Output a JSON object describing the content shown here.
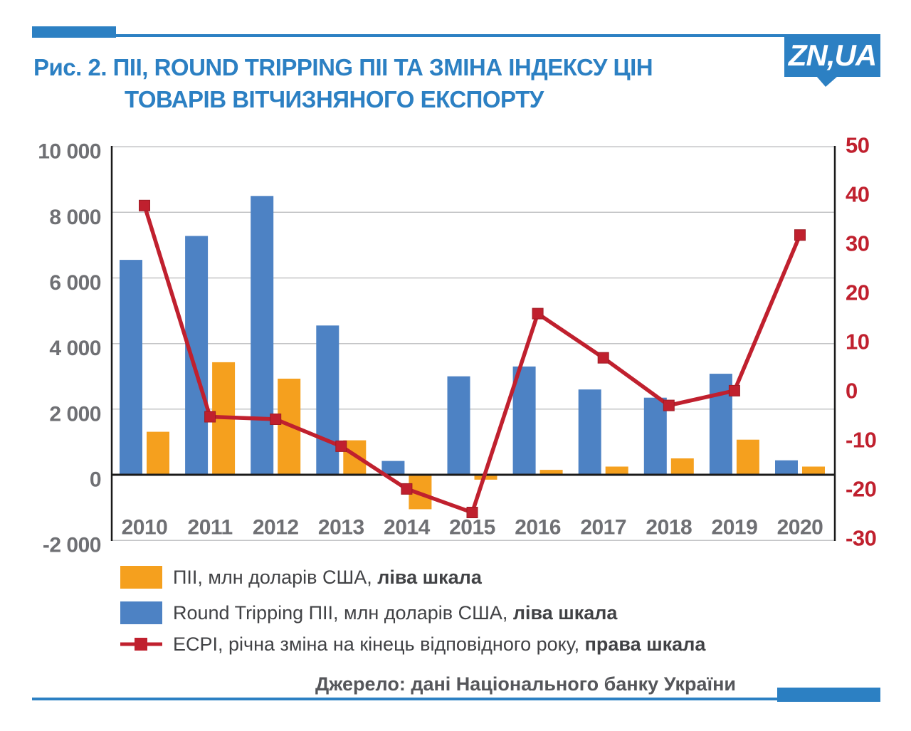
{
  "brand": {
    "logo_text": "ZN,UA"
  },
  "title": {
    "line1": "Рис. 2. ПІІ, ROUND TRIPPING ПІІ ТА ЗМІНА ІНДЕКСУ ЦІН",
    "line2": "ТОВАРІВ ВІТЧИЗНЯНОГО ЕКСПОРТУ"
  },
  "chart_data": {
    "type": "bar+line combo",
    "categories": [
      "2010",
      "2011",
      "2012",
      "2013",
      "2014",
      "2015",
      "2016",
      "2017",
      "2018",
      "2019",
      "2020"
    ],
    "series": [
      {
        "name": "ПІІ, млн доларів США",
        "kind": "bar",
        "axis": "left",
        "color": "#F5A01E",
        "values": [
          1310,
          3430,
          2930,
          1050,
          -1050,
          -150,
          150,
          250,
          500,
          1070,
          250
        ]
      },
      {
        "name": "Round Tripping ПІІ, млн доларів США",
        "kind": "bar",
        "axis": "left",
        "color": "#4D82C4",
        "values": [
          6550,
          7280,
          8500,
          4550,
          420,
          3000,
          3300,
          2600,
          2350,
          3080,
          440
        ]
      },
      {
        "name": "ECPI, річна зміна на кінець відповідного року",
        "kind": "line",
        "axis": "right",
        "color": "#C0202E",
        "values": [
          38,
          -5,
          -5.5,
          -11,
          -19.7,
          -24.5,
          16,
          7,
          -2.7,
          0.3,
          32
        ]
      }
    ],
    "left_axis": {
      "min": -2000,
      "max": 10000,
      "tick_values": [
        10000,
        8000,
        6000,
        4000,
        2000,
        0,
        -2000
      ],
      "tick_labels": [
        "10 000",
        "8 000",
        "6 000",
        "4 000",
        "2 000",
        "0",
        "-2 000"
      ]
    },
    "right_axis": {
      "min": -30,
      "max": 50,
      "tick_values": [
        50,
        40,
        30,
        20,
        10,
        0,
        -10,
        -20,
        -30
      ],
      "tick_labels": [
        "50",
        "40",
        "30",
        "20",
        "10",
        "0",
        "-10",
        "-20",
        "-30"
      ]
    },
    "grid": true,
    "legend_position": "bottom"
  },
  "legend": [
    {
      "swatch": "orange-rect",
      "label": "ПІІ, млн доларів США, ",
      "label_bold": "ліва шкала"
    },
    {
      "swatch": "blue-rect",
      "label": "Round Tripping ПІІ, млн доларів США, ",
      "label_bold": "ліва шкала"
    },
    {
      "swatch": "red-line-marker",
      "label": "ECPI, річна зміна на кінець відповідного року, ",
      "label_bold": "права шкала"
    }
  ],
  "source": {
    "text": "Джерело: дані Національного банку України"
  },
  "colors": {
    "bar_blue": "#4D82C4",
    "bar_orange": "#F5A01E",
    "line_red": "#C0202E",
    "brand_blue": "#2C80C3",
    "axis_text": "#6F7074",
    "right_axis_text": "#C0202E",
    "legend_text": "#414245",
    "source_text": "#55565A",
    "grid": "#C3C4C6",
    "axis_line": "#1A1A1A"
  }
}
